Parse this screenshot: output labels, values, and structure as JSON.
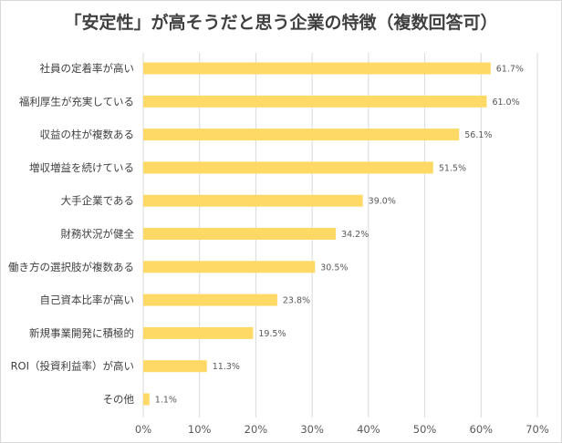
{
  "chart_data": {
    "type": "bar",
    "orientation": "horizontal",
    "title": "「安定性」が高そうだと思う企業の特徴（複数回答可）",
    "categories": [
      "社員の定着率が高い",
      "福利厚生が充実している",
      "収益の柱が複数ある",
      "増収増益を続けている",
      "大手企業である",
      "財務状況が健全",
      "働き方の選択肢が複数ある",
      "自己資本比率が高い",
      "新規事業開発に積極的",
      "ROI（投資利益率）が高い",
      "その他"
    ],
    "values": [
      61.7,
      61.0,
      56.1,
      51.5,
      39.0,
      34.2,
      30.5,
      23.8,
      19.5,
      11.3,
      1.1
    ],
    "value_labels": [
      "61.7%",
      "61.0%",
      "56.1%",
      "51.5%",
      "39.0%",
      "34.2%",
      "30.5%",
      "23.8%",
      "19.5%",
      "11.3%",
      "1.1%"
    ],
    "xlim": [
      0,
      70
    ],
    "xticks": [
      0,
      10,
      20,
      30,
      40,
      50,
      60,
      70
    ],
    "xtick_labels": [
      "0%",
      "10%",
      "20%",
      "30%",
      "40%",
      "50%",
      "60%",
      "70%"
    ],
    "xlabel": "",
    "ylabel": "",
    "grid": true,
    "legend": "none",
    "colors": {
      "bar": "#FFD966",
      "grid": "#d9d9d9",
      "text": "#404040"
    }
  }
}
